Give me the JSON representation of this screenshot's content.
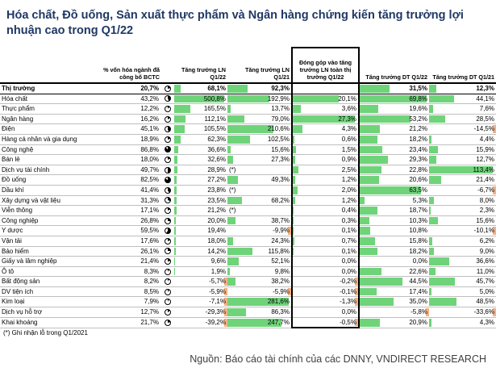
{
  "title": "Hóa chất, Đồ uống, Sản xuất thực phẩm và Ngân hàng chứng kiến tăng trưởng lợi nhuận cao trong Q1/22",
  "headers": {
    "name": "",
    "share": "% vốn hóa ngành đã công bố BCTC",
    "ln": "Tăng trưởng LN Q1/22",
    "ln_q121": "Tăng trưởng LN Q1/21",
    "contrib": "Đóng góp vào tăng trưởng LN toàn thị trường Q1/22",
    "dt": "Tăng trưởng DT Q1/22",
    "dt_q121": "Tăng trưởng DT Q1/21"
  },
  "rows": [
    {
      "name": "Thị trường",
      "pie": 0.207,
      "share": "20,7%",
      "ln": "68,1%",
      "ln_v": 68.1,
      "ln21": "92,3%",
      "ln21_v": 92.3,
      "contrib": "",
      "contrib_v": 0,
      "dt": "31,5%",
      "dt_v": 31.5,
      "dt21": "12,3%",
      "dt21_v": 12.3
    },
    {
      "name": "Hóa chất",
      "pie": 0.432,
      "share": "43,2%",
      "ln": "500,8%",
      "ln_v": 500.8,
      "ln21": "192,9%",
      "ln21_v": 192.9,
      "contrib": "20,1%",
      "contrib_v": 20.1,
      "dt": "69,8%",
      "dt_v": 69.8,
      "dt21": "44,1%",
      "dt21_v": 44.1
    },
    {
      "name": "Thực phẩm",
      "pie": 0.122,
      "share": "12,2%",
      "ln": "165,5%",
      "ln_v": 165.5,
      "ln21": "13,7%",
      "ln21_v": 13.7,
      "contrib": "3,6%",
      "contrib_v": 3.6,
      "dt": "19,6%",
      "dt_v": 19.6,
      "dt21": "7,6%",
      "dt21_v": 7.6
    },
    {
      "name": "Ngân hàng",
      "pie": 0.162,
      "share": "16,2%",
      "ln": "112,1%",
      "ln_v": 112.1,
      "ln21": "79,0%",
      "ln21_v": 79.0,
      "contrib": "27,3%",
      "contrib_v": 27.3,
      "dt": "53,2%",
      "dt_v": 53.2,
      "dt21": "28,5%",
      "dt21_v": 28.5
    },
    {
      "name": "Điện",
      "pie": 0.451,
      "share": "45,1%",
      "ln": "105,5%",
      "ln_v": 105.5,
      "ln21": "210,6%",
      "ln21_v": 210.6,
      "contrib": "4,3%",
      "contrib_v": 4.3,
      "dt": "21,2%",
      "dt_v": 21.2,
      "dt21": "-14,5%",
      "dt21_v": -14.5
    },
    {
      "name": "Hàng cá nhân và gia dụng",
      "pie": 0.189,
      "share": "18,9%",
      "ln": "62,3%",
      "ln_v": 62.3,
      "ln21": "102,5%",
      "ln21_v": 102.5,
      "contrib": "0,6%",
      "contrib_v": 0.6,
      "dt": "18,2%",
      "dt_v": 18.2,
      "dt21": "4,4%",
      "dt21_v": 4.4
    },
    {
      "name": "Công nghệ",
      "pie": 0.868,
      "share": "86,8%",
      "ln": "36,6%",
      "ln_v": 36.6,
      "ln21": "15,6%",
      "ln21_v": 15.6,
      "contrib": "1,5%",
      "contrib_v": 1.5,
      "dt": "23,4%",
      "dt_v": 23.4,
      "dt21": "15,9%",
      "dt21_v": 15.9
    },
    {
      "name": "Bán lẻ",
      "pie": 0.18,
      "share": "18,0%",
      "ln": "32,6%",
      "ln_v": 32.6,
      "ln21": "27,3%",
      "ln21_v": 27.3,
      "contrib": "0,9%",
      "contrib_v": 0.9,
      "dt": "29,3%",
      "dt_v": 29.3,
      "dt21": "12,7%",
      "dt21_v": 12.7
    },
    {
      "name": "Dịch vụ tài chính",
      "pie": 0.497,
      "share": "49,7%",
      "ln": "28,9%",
      "ln_v": 28.9,
      "ln_note": "(*)",
      "ln21": "",
      "ln21_v": 0,
      "contrib": "2,5%",
      "contrib_v": 2.5,
      "dt": "22,8%",
      "dt_v": 22.8,
      "dt21": "113,4%",
      "dt21_v": 113.4
    },
    {
      "name": "Đồ uống",
      "pie": 0.825,
      "share": "82,5%",
      "ln": "27,2%",
      "ln_v": 27.2,
      "ln21": "49,3%",
      "ln21_v": 49.3,
      "contrib": "1,2%",
      "contrib_v": 1.2,
      "dt": "20,6%",
      "dt_v": 20.6,
      "dt21": "21,4%",
      "dt21_v": 21.4
    },
    {
      "name": "Dầu khí",
      "pie": 0.414,
      "share": "41,4%",
      "ln": "23,8%",
      "ln_v": 23.8,
      "ln_note": "(*)",
      "ln21": "",
      "ln21_v": 0,
      "contrib": "2,0%",
      "contrib_v": 2.0,
      "dt": "63,5%",
      "dt_v": 63.5,
      "dt21": "-6,7%",
      "dt21_v": -6.7
    },
    {
      "name": "Xây dựng và vật liệu",
      "pie": 0.313,
      "share": "31,3%",
      "ln": "23,5%",
      "ln_v": 23.5,
      "ln21": "68,2%",
      "ln21_v": 68.2,
      "contrib": "1,2%",
      "contrib_v": 1.2,
      "dt": "5,3%",
      "dt_v": 5.3,
      "dt21": "8,0%",
      "dt21_v": 8.0
    },
    {
      "name": "Viễn thông",
      "pie": 0.171,
      "share": "17,1%",
      "ln": "21,2%",
      "ln_v": 21.2,
      "ln_note": "(*)",
      "ln21": "",
      "ln21_v": 0,
      "contrib": "0,4%",
      "contrib_v": 0.4,
      "dt": "18,7%",
      "dt_v": 18.7,
      "dt21": "2,3%",
      "dt21_v": 2.3
    },
    {
      "name": "Công nghiệp",
      "pie": 0.268,
      "share": "26,8%",
      "ln": "20,0%",
      "ln_v": 20.0,
      "ln21": "38,7%",
      "ln21_v": 38.7,
      "contrib": "0,3%",
      "contrib_v": 0.3,
      "dt": "10,3%",
      "dt_v": 10.3,
      "dt21": "15,6%",
      "dt21_v": 15.6
    },
    {
      "name": "Y dược",
      "pie": 0.595,
      "share": "59,5%",
      "ln": "19,4%",
      "ln_v": 19.4,
      "ln21": "-9,9%",
      "ln21_v": -9.9,
      "contrib": "0,1%",
      "contrib_v": 0.1,
      "dt": "10,8%",
      "dt_v": 10.8,
      "dt21": "-10,1%",
      "dt21_v": -10.1
    },
    {
      "name": "Vận tải",
      "pie": 0.176,
      "share": "17,6%",
      "ln": "18,0%",
      "ln_v": 18.0,
      "ln21": "24,3%",
      "ln21_v": 24.3,
      "contrib": "0,7%",
      "contrib_v": 0.7,
      "dt": "15,8%",
      "dt_v": 15.8,
      "dt21": "6,2%",
      "dt21_v": 6.2
    },
    {
      "name": "Bảo hiểm",
      "pie": 0.261,
      "share": "26,1%",
      "ln": "14,2%",
      "ln_v": 14.2,
      "ln21": "115,8%",
      "ln21_v": 115.8,
      "contrib": "0,1%",
      "contrib_v": 0.1,
      "dt": "18,2%",
      "dt_v": 18.2,
      "dt21": "9,0%",
      "dt21_v": 9.0
    },
    {
      "name": "Giấy và lâm nghiệp",
      "pie": 0.214,
      "share": "21,4%",
      "ln": "9,6%",
      "ln_v": 9.6,
      "ln21": "52,1%",
      "ln21_v": 52.1,
      "contrib": "0,0%",
      "contrib_v": 0.0,
      "dt": "0,0%",
      "dt_v": 0.0,
      "dt21": "36,6%",
      "dt21_v": 36.6
    },
    {
      "name": "Ô tô",
      "pie": 0.083,
      "share": "8,3%",
      "ln": "1,9%",
      "ln_v": 1.9,
      "ln21": "9,8%",
      "ln21_v": 9.8,
      "contrib": "0,0%",
      "contrib_v": 0.0,
      "dt": "22,6%",
      "dt_v": 22.6,
      "dt21": "11,0%",
      "dt21_v": 11.0
    },
    {
      "name": "Bất động sản",
      "pie": 0.082,
      "share": "8,2%",
      "ln": "-5,7%",
      "ln_v": -5.7,
      "ln21": "38,2%",
      "ln21_v": 38.2,
      "contrib": "-0,2%",
      "contrib_v": -0.2,
      "dt": "44,5%",
      "dt_v": 44.5,
      "dt21": "45,7%",
      "dt21_v": 45.7
    },
    {
      "name": "DV tiện ích",
      "pie": 0.085,
      "share": "8,5%",
      "ln": "-5,9%",
      "ln_v": -5.9,
      "ln21": "-5,9%",
      "ln21_v": -5.9,
      "contrib": "-0,1%",
      "contrib_v": -0.1,
      "dt": "17,4%",
      "dt_v": 17.4,
      "dt21": "5,0%",
      "dt21_v": 5.0
    },
    {
      "name": "Kim loại",
      "pie": 0.079,
      "share": "7,9%",
      "ln": "-7,1%",
      "ln_v": -7.1,
      "ln21": "281,6%",
      "ln21_v": 281.6,
      "contrib": "-1,3%",
      "contrib_v": -1.3,
      "dt": "35,0%",
      "dt_v": 35.0,
      "dt21": "48,5%",
      "dt21_v": 48.5
    },
    {
      "name": "Dịch vụ hỗ trợ",
      "pie": 0.127,
      "share": "12,7%",
      "ln": "-29,3%",
      "ln_v": -29.3,
      "ln21": "86,3%",
      "ln21_v": 86.3,
      "contrib": "0,0%",
      "contrib_v": 0.0,
      "dt": "-5,8%",
      "dt_v": -5.8,
      "dt21": "-33,6%",
      "dt21_v": -33.6
    },
    {
      "name": "Khai khoáng",
      "pie": 0.217,
      "share": "21,7%",
      "ln": "-39,2%",
      "ln_v": -39.2,
      "ln21": "247,7%",
      "ln21_v": 247.7,
      "contrib": "-0,5%",
      "contrib_v": -0.5,
      "dt": "20,9%",
      "dt_v": 20.9,
      "dt21": "4,3%",
      "dt21_v": 4.3
    }
  ],
  "scales": {
    "ln": 500.8,
    "ln21": 281.6,
    "contrib": 27.3,
    "dt": 69.8,
    "dt21": 113.4
  },
  "colors": {
    "positive": "#6fd37a",
    "negative": "#f4b183",
    "title": "#1f3864"
  },
  "footnote": "(*) Ghi nhận lỗ trong Q1/2021",
  "source": "Nguồn: Báo cáo tài chính của các DNNY, VNDIRECT RESEARCH"
}
